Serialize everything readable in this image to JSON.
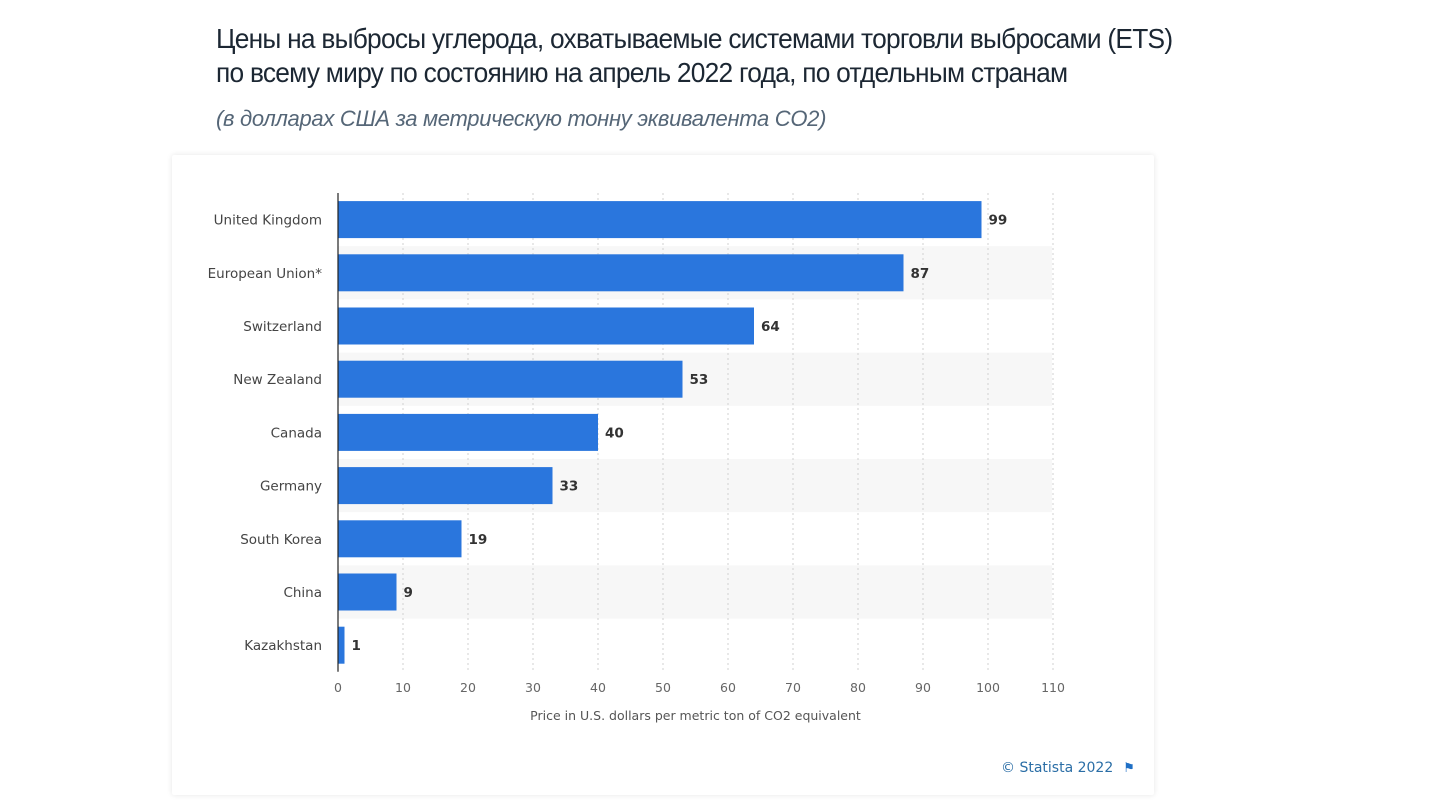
{
  "header": {
    "title_line1": "Цены на выбросы углерода, охватываемые системами торговли выбросами (ETS)",
    "title_line2": "по  всему миру по состоянию на апрель 2022 года, по отдельным странам",
    "subtitle": "(в долларах США за метрическую тонну эквивалента CO2)"
  },
  "chart_data": {
    "type": "bar",
    "orientation": "horizontal",
    "categories": [
      "United Kingdom",
      "European Union*",
      "Switzerland",
      "New Zealand",
      "Canada",
      "Germany",
      "South Korea",
      "China",
      "Kazakhstan"
    ],
    "values": [
      99,
      87,
      64,
      53,
      40,
      33,
      19,
      9,
      1
    ],
    "xlabel": "Price in U.S. dollars per metric ton of CO2 equivalent",
    "ylabel": "",
    "xlim": [
      0,
      110
    ],
    "xticks": [
      0,
      10,
      20,
      30,
      40,
      50,
      60,
      70,
      80,
      90,
      100,
      110
    ],
    "grid": true,
    "data_labels": true,
    "bar_color": "#2a76dd"
  },
  "footer": {
    "credit": "© Statista 2022",
    "flag_icon": "flag-icon"
  }
}
